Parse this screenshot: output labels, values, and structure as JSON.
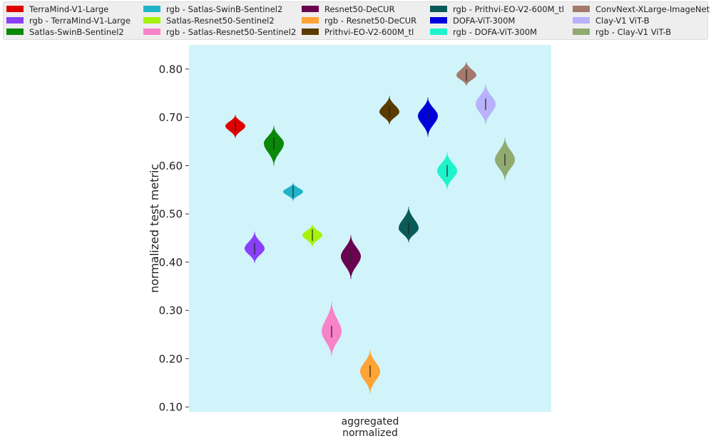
{
  "chart_data": {
    "type": "violin",
    "title": "",
    "xlabel": [
      "aggregated",
      "normalized"
    ],
    "ylabel": "normalized test metric",
    "ylim": [
      0.09,
      0.85
    ],
    "yticks": [
      0.1,
      0.2,
      0.3,
      0.4,
      0.5,
      0.6,
      0.7,
      0.8
    ],
    "ytick_labels": [
      "0.10",
      "0.20",
      "0.30",
      "0.40",
      "0.50",
      "0.60",
      "0.70",
      "0.80"
    ],
    "background": "#d0f4fa",
    "legend_position": "top",
    "series": [
      {
        "name": "TerraMind-V1-Large",
        "color": "#e00000",
        "median": 0.682,
        "min": 0.657,
        "max": 0.705
      },
      {
        "name": "rgb - TerraMind-V1-Large",
        "color": "#8a3ffc",
        "median": 0.428,
        "min": 0.398,
        "max": 0.463
      },
      {
        "name": "Satlas-SwinB-Sentinel2",
        "color": "#0a880a",
        "median": 0.646,
        "min": 0.6,
        "max": 0.682
      },
      {
        "name": "rgb - Satlas-SwinB-Sentinel2",
        "color": "#1fb4c8",
        "median": 0.546,
        "min": 0.527,
        "max": 0.564
      },
      {
        "name": "Satlas-Resnet50-Sentinel2",
        "color": "#a6f20a",
        "median": 0.456,
        "min": 0.432,
        "max": 0.478
      },
      {
        "name": "rgb - Satlas-Resnet50-Sentinel2",
        "color": "#f783c9",
        "median": 0.256,
        "min": 0.205,
        "max": 0.318
      },
      {
        "name": "Resnet50-DeCUR",
        "color": "#6a0450",
        "median": 0.412,
        "min": 0.365,
        "max": 0.456
      },
      {
        "name": "rgb - Resnet50-DeCUR",
        "color": "#ffa334",
        "median": 0.174,
        "min": 0.128,
        "max": 0.218
      },
      {
        "name": "Prithvi-EO-V2-600M_tl",
        "color": "#5a3c00",
        "median": 0.711,
        "min": 0.685,
        "max": 0.744
      },
      {
        "name": "rgb - Prithvi-EO-V2-600M_tl",
        "color": "#0a5a5a",
        "median": 0.47,
        "min": 0.441,
        "max": 0.515
      },
      {
        "name": "DOFA-ViT-300M",
        "color": "#0000dd",
        "median": 0.703,
        "min": 0.66,
        "max": 0.741
      },
      {
        "name": "rgb - DOFA-ViT-300M",
        "color": "#1ef4cc",
        "median": 0.589,
        "min": 0.551,
        "max": 0.627
      },
      {
        "name": "ConvNext-XLarge-ImageNet",
        "color": "#a47a6c",
        "median": 0.787,
        "min": 0.765,
        "max": 0.815
      },
      {
        "name": "Clay-V1 ViT-B",
        "color": "#b8b2fc",
        "median": 0.727,
        "min": 0.684,
        "max": 0.769
      },
      {
        "name": "rgb - Clay-V1 ViT-B",
        "color": "#90aa70",
        "median": 0.612,
        "min": 0.569,
        "max": 0.658
      }
    ]
  }
}
